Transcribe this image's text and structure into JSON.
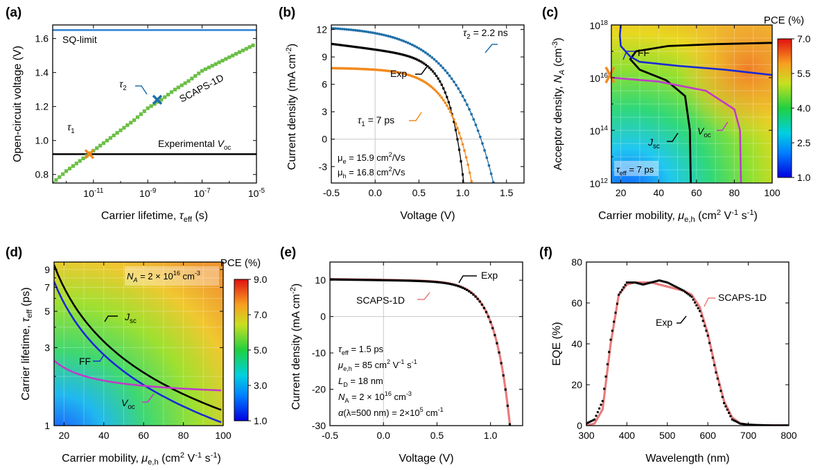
{
  "chart_data": [
    {
      "panel": "(a)",
      "type": "line",
      "xlabel": "Carrier lifetime, ",
      "xlabel_sym": "τ",
      "xlabel_sub": "eff",
      "xlabel_unit": " (s)",
      "ylabel": "Open-circuit voltage (V)",
      "xscale": "log",
      "xlim_log10": [
        -12.5,
        -5
      ],
      "ylim": [
        0.75,
        1.68
      ],
      "xticks": [
        {
          "v": -11,
          "b": "10",
          "e": "-11"
        },
        {
          "v": -9,
          "b": "10",
          "e": "-9"
        },
        {
          "v": -7,
          "b": "10",
          "e": "-7"
        },
        {
          "v": -5,
          "b": "10",
          "e": "-5"
        }
      ],
      "yticks": [
        "0.8",
        "1.0",
        "1.2",
        "1.4",
        "1.6"
      ],
      "sq_limit": 1.65,
      "sq_label": "SQ-limit",
      "experimental_voc": 0.92,
      "exp_label": "Experimental ",
      "exp_sym": "V",
      "exp_sub": "oc",
      "scaps_label": "SCAPS-1D",
      "scaps_x_log10": [
        -12.5,
        -12,
        -11.5,
        -11,
        -10.5,
        -10,
        -9.5,
        -9,
        -8.5,
        -8,
        -7.5,
        -7,
        -6.5,
        -6,
        -5.5,
        -5
      ],
      "scaps_y": [
        0.75,
        0.82,
        0.88,
        0.94,
        1.0,
        1.06,
        1.12,
        1.19,
        1.24,
        1.3,
        1.35,
        1.41,
        1.45,
        1.49,
        1.53,
        1.57
      ],
      "tau1": {
        "label": "τ",
        "sub": "1",
        "x_log10": -11.15,
        "y": 0.92
      },
      "tau2": {
        "label": "τ",
        "sub": "2",
        "x_log10": -8.65,
        "y": 1.24
      }
    },
    {
      "panel": "(b)",
      "type": "line",
      "xlabel": "Voltage (V)",
      "ylabel": "Current density (mA cm",
      "ylabel_sup": "-2",
      "ylabel_end": ")",
      "xlim": [
        -0.5,
        1.7
      ],
      "ylim": [
        -4.8,
        12.5
      ],
      "xticks": [
        "-0.5",
        "0.0",
        "0.5",
        "1.0",
        "1.5"
      ],
      "yticks": [
        "-3",
        "0",
        "3",
        "6",
        "9",
        "12"
      ],
      "series": [
        {
          "name": "τ2 = 2.2 ns",
          "color": "#1f6fa8",
          "jsc": 11.6,
          "voc": 1.21,
          "n": 2.3,
          "a": 0.003
        },
        {
          "name": "Exp",
          "color": "#000000",
          "jsc": 9.8,
          "voc": 0.96,
          "n": 6.0,
          "a": 0.12
        },
        {
          "name": "τ1 = 7 ps",
          "color": "#f28a1c",
          "jsc": 7.6,
          "voc": 0.985,
          "n": 4.0,
          "a": 0.008
        }
      ],
      "labels": {
        "tau2": "τ",
        "tau2_sub": "2",
        "tau2_val": " = 2.2 ns",
        "exp": "Exp",
        "tau1": "τ",
        "tau1_sub": "1",
        "tau1_val": " = 7 ps"
      },
      "note1": "μ",
      "note1_sub": "e",
      "note1_val": " = 15.9 cm",
      "note1_sup": "2",
      "note1_unit": "/Vs",
      "note2": "μ",
      "note2_sub": "h",
      "note2_val": " = 16.8 cm",
      "note2_sup": "2",
      "note2_unit": "/Vs"
    },
    {
      "panel": "(c)",
      "type": "heatmap",
      "xlabel": "Carrier mobility, ",
      "xlabel_sym": "μ",
      "xlabel_sub": "e,h",
      "xlabel_unit": " (cm",
      "ylabel": "Acceptor density, ",
      "ylabel_sym": "N",
      "ylabel_sub": "A",
      "ylabel_unit": " (cm",
      "xlim": [
        15,
        100
      ],
      "ylim_log10": [
        12,
        18
      ],
      "xticks": [
        "20",
        "40",
        "60",
        "80",
        "100"
      ],
      "yticks": [
        {
          "b": "10",
          "e": "18"
        },
        {
          "b": "10",
          "e": "16"
        },
        {
          "b": "10",
          "e": "14"
        },
        {
          "b": "10",
          "e": "12"
        }
      ],
      "colorbar_title": "PCE (%)",
      "colorbar_ticks": [
        "7.0",
        "5.5",
        "4.0",
        "2.5",
        "1.0"
      ],
      "colorbar_range": [
        1.0,
        7.0
      ],
      "contours": {
        "ff": "FF",
        "jsc": "J",
        "jsc_sub": "sc",
        "voc": "V",
        "voc_sub": "oc"
      },
      "inset": "τ",
      "inset_sub": "eff",
      "inset_val": " = 7 ps"
    },
    {
      "panel": "(d)",
      "type": "heatmap",
      "xlabel": "Carrier mobility, ",
      "xlabel_sym": "μ",
      "xlabel_sub": "e,h",
      "xlabel_unit": " (cm",
      "ylabel": "Carrier lifetime, ",
      "ylabel_sym": "τ",
      "ylabel_sub": "eff",
      "ylabel_unit": " (ps)",
      "xlim": [
        15,
        100
      ],
      "ylim_log": [
        1,
        10
      ],
      "xticks": [
        "20",
        "40",
        "60",
        "80",
        "100"
      ],
      "yticks": [
        "9",
        "7",
        "5",
        "3",
        "1"
      ],
      "colorbar_title": "PCE (%)",
      "colorbar_ticks": [
        "9.0",
        "7.0",
        "5.0",
        "3.0",
        "1.0"
      ],
      "colorbar_range": [
        1.0,
        9.0
      ],
      "contours": {
        "jsc": "J",
        "jsc_sub": "sc",
        "ff": "FF",
        "voc": "V",
        "voc_sub": "oc"
      },
      "inset": "N",
      "inset_sub": "A",
      "inset_val": " = 2 × 10",
      "inset_sup": "16",
      "inset_unit": " cm",
      "inset_sup2": "-3"
    },
    {
      "panel": "(e)",
      "type": "line",
      "xlabel": "Voltage (V)",
      "ylabel": "Current density (mA cm",
      "ylabel_sup": "-2",
      "ylabel_end": ")",
      "xlim": [
        -0.5,
        1.3
      ],
      "ylim": [
        -30,
        15
      ],
      "xticks": [
        "-0.5",
        "0.0",
        "0.5",
        "1.0"
      ],
      "yticks": [
        "10",
        "0",
        "-10",
        "-20",
        "-30"
      ],
      "series": [
        {
          "name": "Exp",
          "color": "#000000",
          "jsc": 10.0,
          "voc": 0.985,
          "n": 3.5,
          "a": 0.01
        },
        {
          "name": "SCAPS-1D",
          "color": "#e87c7c",
          "jsc": 10.1,
          "voc": 0.985,
          "n": 3.5,
          "a": 0.01
        }
      ],
      "labels": {
        "exp": "Exp",
        "scaps": "SCAPS-1D"
      },
      "params": [
        {
          "sym": "τ",
          "sub": "eff",
          "val": " = 1.5 ps"
        },
        {
          "sym": "μ",
          "sub": "e,h",
          "val": " = 85 cm",
          "sup": "2",
          "val2": " V",
          "sup2": "-1",
          "val3": " s",
          "sup3": "-1"
        },
        {
          "sym": "L",
          "sub": "D",
          "val": " = 18 nm"
        },
        {
          "sym": "N",
          "sub": "A",
          "val": " = 2 × 10",
          "sup": "16",
          "val2": " cm",
          "sup2": "-3"
        },
        {
          "sym": "α",
          "sub": "",
          "val": "(λ=500 nm) = 2×10",
          "sup": "5",
          "val2": " cm",
          "sup2": "-1"
        }
      ]
    },
    {
      "panel": "(f)",
      "type": "line",
      "xlabel": "Wavelength (nm)",
      "ylabel": "EQE (%)",
      "xlim": [
        300,
        800
      ],
      "ylim": [
        0,
        80
      ],
      "xticks": [
        "300",
        "400",
        "500",
        "600",
        "700",
        "800"
      ],
      "yticks": [
        "0",
        "20",
        "40",
        "60",
        "80"
      ],
      "exp_x": [
        300,
        320,
        340,
        360,
        380,
        400,
        420,
        440,
        460,
        480,
        500,
        520,
        540,
        560,
        580,
        600,
        620,
        640,
        660,
        680,
        700,
        720,
        740,
        760,
        780,
        800
      ],
      "exp_y": [
        1,
        3,
        12,
        42,
        64,
        70,
        70,
        69,
        70,
        71,
        70,
        68,
        66,
        63,
        56,
        44,
        26,
        11,
        3,
        1,
        0.5,
        0.3,
        0.2,
        0.1,
        0.1,
        0.1
      ],
      "scaps_x": [
        300,
        320,
        340,
        360,
        380,
        400,
        420,
        440,
        460,
        480,
        500,
        520,
        540,
        560,
        580,
        600,
        620,
        640,
        660,
        680,
        700,
        720,
        740,
        760,
        780,
        800
      ],
      "scaps_y": [
        0,
        1,
        8,
        40,
        64,
        69,
        70,
        70,
        70,
        69,
        68,
        67,
        66,
        64,
        58,
        45,
        27,
        12,
        4,
        1,
        0.4,
        0.2,
        0.1,
        0.1,
        0.1,
        0.1
      ],
      "labels": {
        "scaps": "SCAPS-1D",
        "exp": "Exp"
      }
    }
  ],
  "colors": {
    "sq": "#2a7fd4",
    "scaps_a": "#6abf45",
    "tau1": "#f28a1c",
    "tau2": "#1f6fa8",
    "ff": "#1a2ad4",
    "voc": "#c03ac8",
    "jsc": "#000000",
    "scaps_pink": "#e87c7c",
    "grid": "#c8c8c8"
  }
}
